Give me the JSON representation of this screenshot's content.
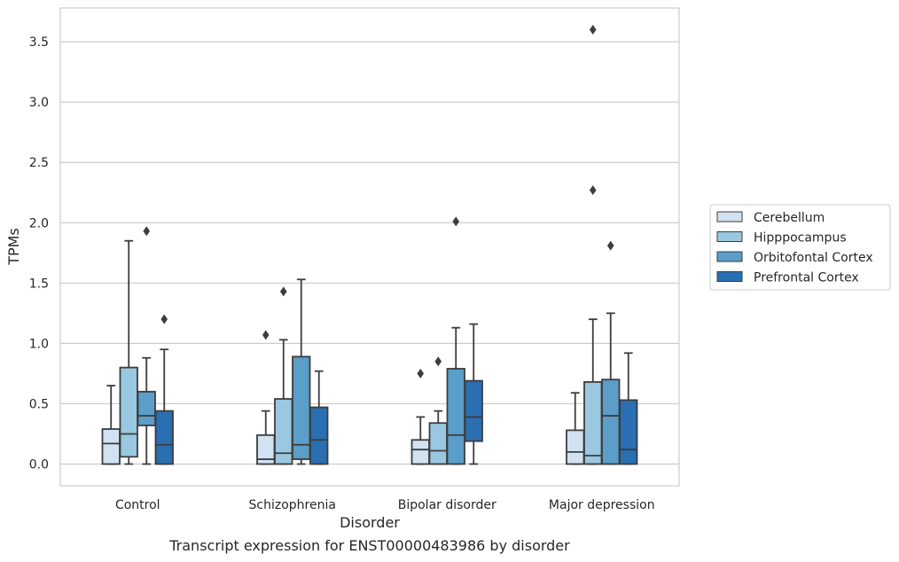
{
  "caption": "Transcript expression for ENST00000483986 by disorder",
  "chart_data": {
    "type": "box",
    "title": "",
    "xlabel": "Disorder",
    "ylabel": "TPMs",
    "ylim": [
      -0.18,
      3.78
    ],
    "yticks": [
      0.0,
      0.5,
      1.0,
      1.5,
      2.0,
      2.5,
      3.0,
      3.5
    ],
    "ytick_labels": [
      "0.0",
      "0.5",
      "1.0",
      "1.5",
      "2.0",
      "2.5",
      "3.0",
      "3.5"
    ],
    "grid": true,
    "legend_position": "right",
    "categories": [
      "Control",
      "Schizophrenia",
      "Bipolar disorder",
      "Major depression"
    ],
    "series": [
      {
        "name": "Cerebellum",
        "color": "#d1e2f2",
        "boxes": [
          {
            "whisker_low": 0.0,
            "q1": 0.0,
            "median": 0.17,
            "q3": 0.29,
            "whisker_high": 0.65,
            "outliers": []
          },
          {
            "whisker_low": 0.0,
            "q1": 0.0,
            "median": 0.04,
            "q3": 0.24,
            "whisker_high": 0.44,
            "outliers": [
              1.07
            ]
          },
          {
            "whisker_low": 0.0,
            "q1": 0.0,
            "median": 0.12,
            "q3": 0.2,
            "whisker_high": 0.39,
            "outliers": [
              0.75
            ]
          },
          {
            "whisker_low": 0.0,
            "q1": 0.0,
            "median": 0.1,
            "q3": 0.28,
            "whisker_high": 0.59,
            "outliers": []
          }
        ]
      },
      {
        "name": "Hipppocampus",
        "color": "#9ac8e0",
        "boxes": [
          {
            "whisker_low": 0.0,
            "q1": 0.06,
            "median": 0.25,
            "q3": 0.8,
            "whisker_high": 1.85,
            "outliers": []
          },
          {
            "whisker_low": 0.0,
            "q1": 0.0,
            "median": 0.09,
            "q3": 0.54,
            "whisker_high": 1.03,
            "outliers": [
              1.43
            ]
          },
          {
            "whisker_low": 0.0,
            "q1": 0.0,
            "median": 0.11,
            "q3": 0.34,
            "whisker_high": 0.44,
            "outliers": [
              0.85
            ]
          },
          {
            "whisker_low": 0.0,
            "q1": 0.0,
            "median": 0.07,
            "q3": 0.68,
            "whisker_high": 1.2,
            "outliers": [
              2.27,
              3.6
            ]
          }
        ]
      },
      {
        "name": "Orbitofontal Cortex",
        "color": "#5a9ec9",
        "boxes": [
          {
            "whisker_low": 0.0,
            "q1": 0.32,
            "median": 0.4,
            "q3": 0.6,
            "whisker_high": 0.88,
            "outliers": [
              1.93
            ]
          },
          {
            "whisker_low": 0.0,
            "q1": 0.04,
            "median": 0.16,
            "q3": 0.89,
            "whisker_high": 1.53,
            "outliers": []
          },
          {
            "whisker_low": 0.0,
            "q1": 0.0,
            "median": 0.24,
            "q3": 0.79,
            "whisker_high": 1.13,
            "outliers": [
              2.01
            ]
          },
          {
            "whisker_low": 0.0,
            "q1": 0.0,
            "median": 0.4,
            "q3": 0.7,
            "whisker_high": 1.25,
            "outliers": [
              1.81
            ]
          }
        ]
      },
      {
        "name": "Prefrontal Cortex",
        "color": "#2a6fb2",
        "boxes": [
          {
            "whisker_low": 0.0,
            "q1": 0.0,
            "median": 0.16,
            "q3": 0.44,
            "whisker_high": 0.95,
            "outliers": [
              1.2
            ]
          },
          {
            "whisker_low": 0.0,
            "q1": 0.0,
            "median": 0.2,
            "q3": 0.47,
            "whisker_high": 0.77,
            "outliers": []
          },
          {
            "whisker_low": 0.0,
            "q1": 0.19,
            "median": 0.39,
            "q3": 0.69,
            "whisker_high": 1.16,
            "outliers": []
          },
          {
            "whisker_low": 0.0,
            "q1": 0.0,
            "median": 0.12,
            "q3": 0.53,
            "whisker_high": 0.92,
            "outliers": []
          }
        ]
      }
    ]
  }
}
